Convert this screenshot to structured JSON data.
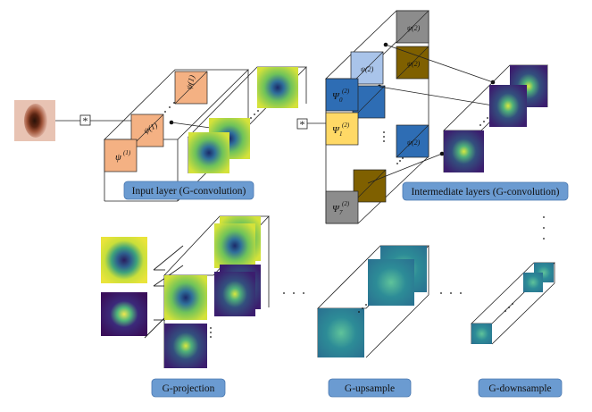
{
  "captions": {
    "input_layer": "Input layer (G-convolution)",
    "intermediate_layers": "Intermediate layers (G-convolution)",
    "g_projection": "G-projection",
    "g_upsample": "G-upsample",
    "g_downsample": "G-downsample"
  },
  "operators": {
    "conv_symbol_1": "*",
    "conv_symbol_2": "*"
  },
  "filters": {
    "psi_1": "ψ",
    "psi_1_sup": "(1)",
    "psi_0_2": "Ψ",
    "psi_0_2_sub": "0",
    "psi_0_2_sup": "(2)",
    "psi_1_2": "Ψ",
    "psi_1_2_sub": "1",
    "psi_1_2_sup": "(2)",
    "psi_7_2": "Ψ",
    "psi_7_2_sub": "7",
    "psi_7_2_sup": "(2)"
  },
  "colors": {
    "caption_fill": "#6b9bd1",
    "caption_stroke": "#4a78b0",
    "filter_input": "#f4b183",
    "filter_blue_dark": "#2e6db4",
    "filter_blue_light": "#a9c4ea",
    "filter_yellow": "#ffd966",
    "filter_olive": "#7f6000",
    "filter_gray": "#8c8c8c",
    "map_green": "#7ec850",
    "map_purple": "#3d2a7a",
    "map_teal": "#2a8a8e"
  }
}
